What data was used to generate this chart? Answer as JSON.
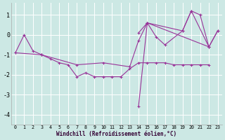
{
  "background_color": "#cce8e4",
  "grid_color": "#b8ddd8",
  "line_color": "#993399",
  "xlabel": "Windchill (Refroidissement éolien,°C)",
  "xlim": [
    -0.5,
    23.5
  ],
  "ylim": [
    -4.5,
    1.6
  ],
  "yticks": [
    -4,
    -3,
    -2,
    -1,
    0,
    1
  ],
  "xticks": [
    0,
    1,
    2,
    3,
    4,
    5,
    6,
    7,
    8,
    9,
    10,
    11,
    12,
    13,
    14,
    15,
    16,
    17,
    18,
    19,
    20,
    21,
    22,
    23
  ],
  "curves": [
    {
      "x": [
        0,
        1,
        2,
        3
      ],
      "y": [
        -0.9,
        0.0,
        -0.8,
        -1.0
      ]
    },
    {
      "x": [
        0,
        3,
        7,
        10,
        13,
        14,
        15,
        19,
        20,
        22,
        23
      ],
      "y": [
        -0.9,
        -1.0,
        -1.5,
        -1.4,
        -1.6,
        -0.3,
        0.6,
        0.2,
        1.2,
        -0.6,
        0.2
      ]
    },
    {
      "x": [
        3,
        4,
        5,
        6,
        7,
        8,
        9,
        10,
        11,
        12,
        13,
        14,
        15,
        16,
        17,
        18,
        19,
        20,
        21,
        22
      ],
      "y": [
        -1.0,
        -1.2,
        -1.4,
        -1.5,
        -2.1,
        -1.9,
        -2.1,
        -2.1,
        -2.1,
        -2.1,
        -1.7,
        -1.4,
        -1.4,
        -1.4,
        -1.4,
        -1.5,
        -1.5,
        -1.5,
        -1.5,
        -1.5
      ]
    },
    {
      "x": [
        14,
        15,
        16,
        17,
        19,
        20,
        21,
        22,
        23
      ],
      "y": [
        0.1,
        0.6,
        -0.1,
        -0.5,
        0.2,
        1.2,
        1.0,
        -0.6,
        0.2
      ]
    },
    {
      "x": [
        14,
        15
      ],
      "y": [
        -3.6,
        0.6
      ]
    },
    {
      "x": [
        15,
        22
      ],
      "y": [
        0.6,
        -0.6
      ]
    }
  ]
}
